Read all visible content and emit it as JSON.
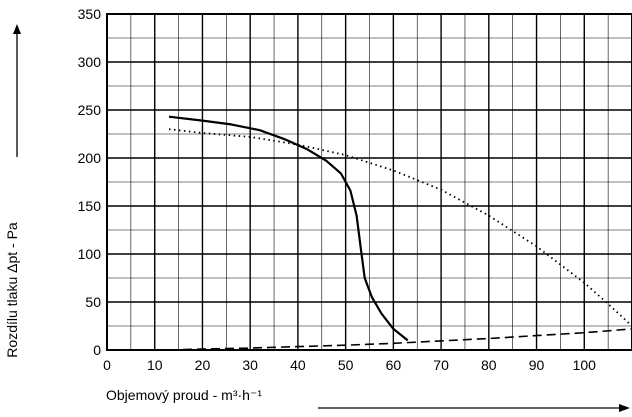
{
  "chart_data": {
    "type": "line",
    "title": "",
    "xlabel": "Objemový proud - m³·h⁻¹",
    "ylabel": "Rozdílu tlaku Δpt - Pa",
    "xlim": [
      0,
      110
    ],
    "ylim": [
      0,
      350
    ],
    "x_ticks": [
      "0",
      "10",
      "20",
      "30",
      "40",
      "50",
      "60",
      "70",
      "80",
      "90",
      "100"
    ],
    "y_ticks": [
      "0",
      "50",
      "100",
      "150",
      "200",
      "250",
      "300",
      "350"
    ],
    "x_tick_values": [
      0,
      10,
      20,
      30,
      40,
      50,
      60,
      70,
      80,
      90,
      100
    ],
    "y_tick_values": [
      0,
      50,
      100,
      150,
      200,
      250,
      300,
      350
    ],
    "minor_x_step": 5,
    "minor_y_step": 25,
    "grid": true,
    "series": [
      {
        "style": "solid",
        "x": [
          13,
          20,
          26,
          32,
          37,
          42,
          46,
          49,
          51,
          52.3,
          53.2,
          54,
          55.5,
          57.5,
          60,
          63
        ],
        "y": [
          243,
          239,
          235,
          229,
          220,
          209,
          197,
          184,
          166,
          140,
          105,
          75,
          55,
          38,
          22,
          10
        ]
      },
      {
        "style": "dotted",
        "x": [
          13,
          20,
          30,
          40,
          50,
          60,
          70,
          80,
          90,
          100,
          105,
          110
        ],
        "y": [
          230,
          226,
          222,
          214,
          203,
          187,
          167,
          140,
          108,
          70,
          48,
          25
        ]
      },
      {
        "style": "dashed",
        "x": [
          13,
          20,
          30,
          40,
          50,
          60,
          70,
          80,
          90,
          100,
          110
        ],
        "y": [
          0,
          1,
          2,
          3.5,
          5,
          7,
          9.5,
          12,
          15,
          18,
          22
        ]
      }
    ]
  }
}
